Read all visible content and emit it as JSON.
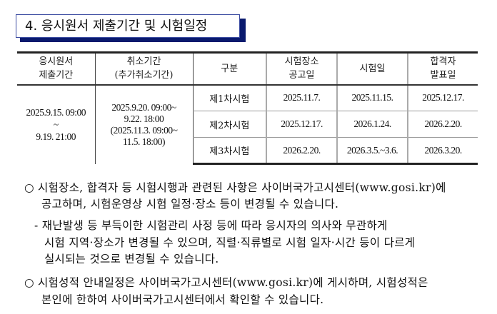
{
  "section_title": "4. 응시원서 제출기간 및 시험일정",
  "table": {
    "headers": [
      "응시원서\n제출기간",
      "취소기간\n(추가취소기간)",
      "구분",
      "시험장소\n공고일",
      "시험일",
      "합격자\n발표일"
    ],
    "application_period": [
      "2025.9.15. 09:00",
      "~",
      "9.19. 21:00"
    ],
    "cancel_period": [
      "2025.9.20. 09:00~",
      "9.22. 18:00",
      "(2025.11.3. 09:00~",
      "11.5. 18:00)"
    ],
    "rows": [
      {
        "stage": "제1차시험",
        "venue_notice": "2025.11.7.",
        "exam_date": "2025.11.15.",
        "result_date": "2025.12.17."
      },
      {
        "stage": "제2차시험",
        "venue_notice": "2025.12.17.",
        "exam_date": "2026.1.24.",
        "result_date": "2026.2.20."
      },
      {
        "stage": "제3차시험",
        "venue_notice": "2026.2.20.",
        "exam_date": "2026.3.5.~3.6.",
        "result_date": "2026.3.20."
      }
    ]
  },
  "notes": [
    "○  시험장소, 합격자 등 시험시행과 관련된 사항은 사이버국가고시센터(www.gosi.kr)에",
    "공고하며, 시험운영상 시험 일정·장소 등이 변경될 수 있습니다.",
    "- 재난발생 등 부득이한 시험관리 사정 등에 따라 응시자의 의사와 무관하게",
    "시험 지역·장소가 변경될 수 있으며, 직렬·직류별로 시험 일자·시간 등이 다르게",
    "실시되는 것으로 변경될 수 있습니다.",
    "○  시험성적 안내일정은 사이버국가고시센터(www.gosi.kr)에 게시하며, 시험성적은",
    "본인에 한하여 사이버국가고시센터에서 확인할 수 있습니다."
  ]
}
